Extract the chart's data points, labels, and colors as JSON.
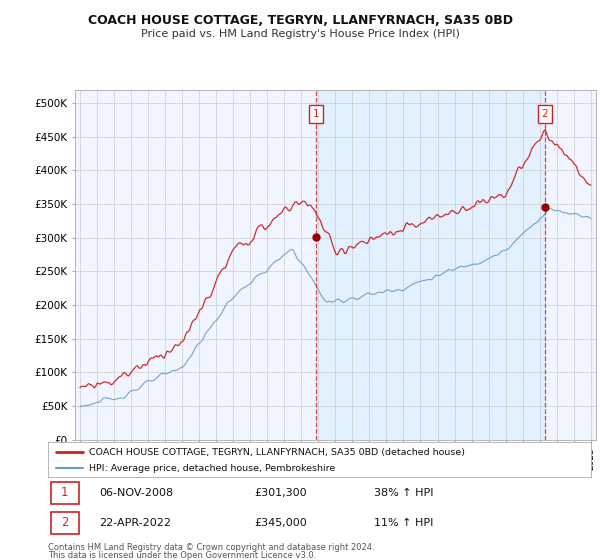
{
  "title": "COACH HOUSE COTTAGE, TEGRYN, LLANFYRNACH, SA35 0BD",
  "subtitle": "Price paid vs. HM Land Registry's House Price Index (HPI)",
  "legend_line1": "COACH HOUSE COTTAGE, TEGRYN, LLANFYRNACH, SA35 0BD (detached house)",
  "legend_line2": "HPI: Average price, detached house, Pembrokeshire",
  "annotation1_date": "06-NOV-2008",
  "annotation1_price": "£301,300",
  "annotation1_hpi": "38% ↑ HPI",
  "annotation2_date": "22-APR-2022",
  "annotation2_price": "£345,000",
  "annotation2_hpi": "11% ↑ HPI",
  "footer1": "Contains HM Land Registry data © Crown copyright and database right 2024.",
  "footer2": "This data is licensed under the Open Government Licence v3.0.",
  "house_color": "#cc2222",
  "hpi_color": "#6699cc",
  "shade_color": "#ddeeff",
  "background_color": "#ffffff",
  "grid_color": "#cccccc",
  "ylim": [
    0,
    520000
  ],
  "yticks": [
    0,
    50000,
    100000,
    150000,
    200000,
    250000,
    300000,
    350000,
    400000,
    450000,
    500000
  ],
  "ytick_labels": [
    "£0",
    "£50K",
    "£100K",
    "£150K",
    "£200K",
    "£250K",
    "£300K",
    "£350K",
    "£400K",
    "£450K",
    "£500K"
  ],
  "sale1_year": 2008.85,
  "sale1_price": 301300,
  "sale2_year": 2022.31,
  "sale2_price": 345000,
  "xmin": 1994.7,
  "xmax": 2025.3
}
